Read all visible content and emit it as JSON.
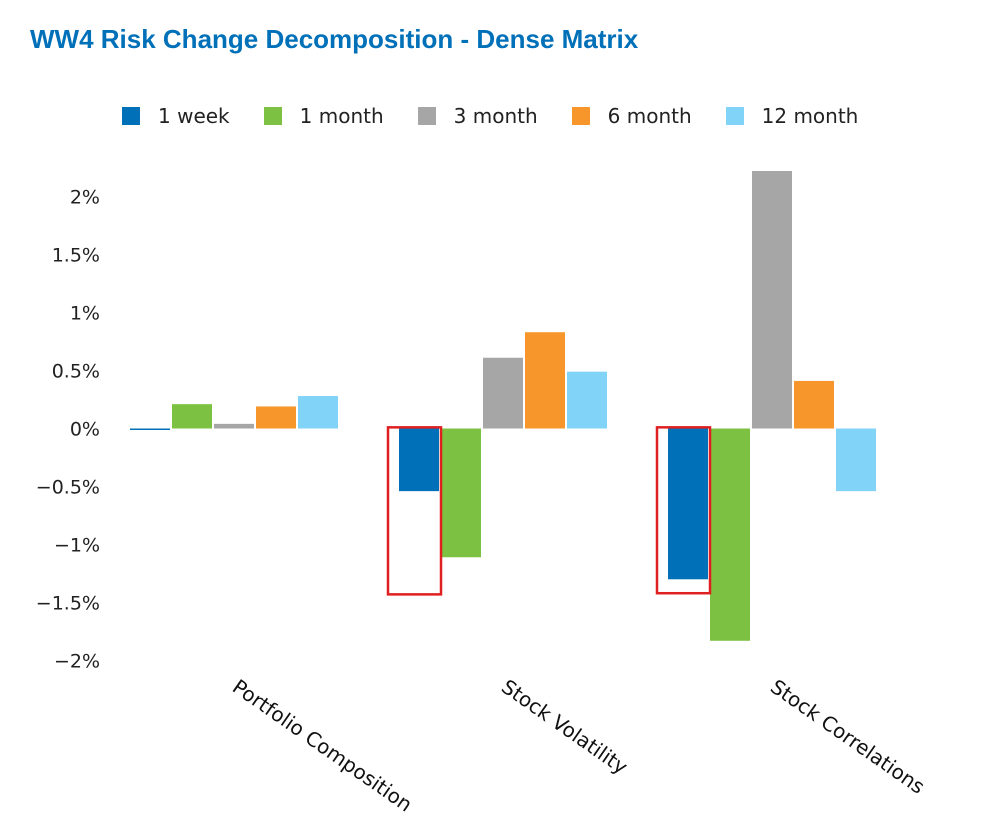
{
  "title": "WW4 Risk Change Decomposition - Dense Matrix",
  "chart_data": {
    "type": "bar",
    "title": "WW4 Risk Change Decomposition - Dense Matrix",
    "xlabel": "",
    "ylabel": "",
    "categories": [
      "Portfolio Composition",
      "Stock Volatility",
      "Stock Correlations"
    ],
    "series": [
      {
        "name": "1 week",
        "color": "#0070b8",
        "values": [
          -0.01,
          -0.54,
          -1.3
        ]
      },
      {
        "name": "1 month",
        "color": "#7dc142",
        "values": [
          0.21,
          -1.11,
          -1.83
        ]
      },
      {
        "name": "3 month",
        "color": "#a6a6a6",
        "values": [
          0.04,
          0.61,
          2.22
        ]
      },
      {
        "name": "6 month",
        "color": "#f7962a",
        "values": [
          0.19,
          0.83,
          0.41
        ]
      },
      {
        "name": "12 month",
        "color": "#81d3f8",
        "values": [
          0.28,
          0.49,
          -0.54
        ]
      }
    ],
    "ylim": [
      -2,
      2.2
    ],
    "yticks": [
      2,
      1.5,
      1,
      0.5,
      0,
      -0.5,
      -1,
      -1.5,
      -2
    ],
    "ytick_labels": [
      "2%",
      "1.5%",
      "1%",
      "0.5%",
      "0%",
      "−0.5%",
      "−1%",
      "−1.5%",
      "−2%"
    ],
    "grid": false,
    "legend": "top",
    "highlight_color": "#e02020"
  }
}
